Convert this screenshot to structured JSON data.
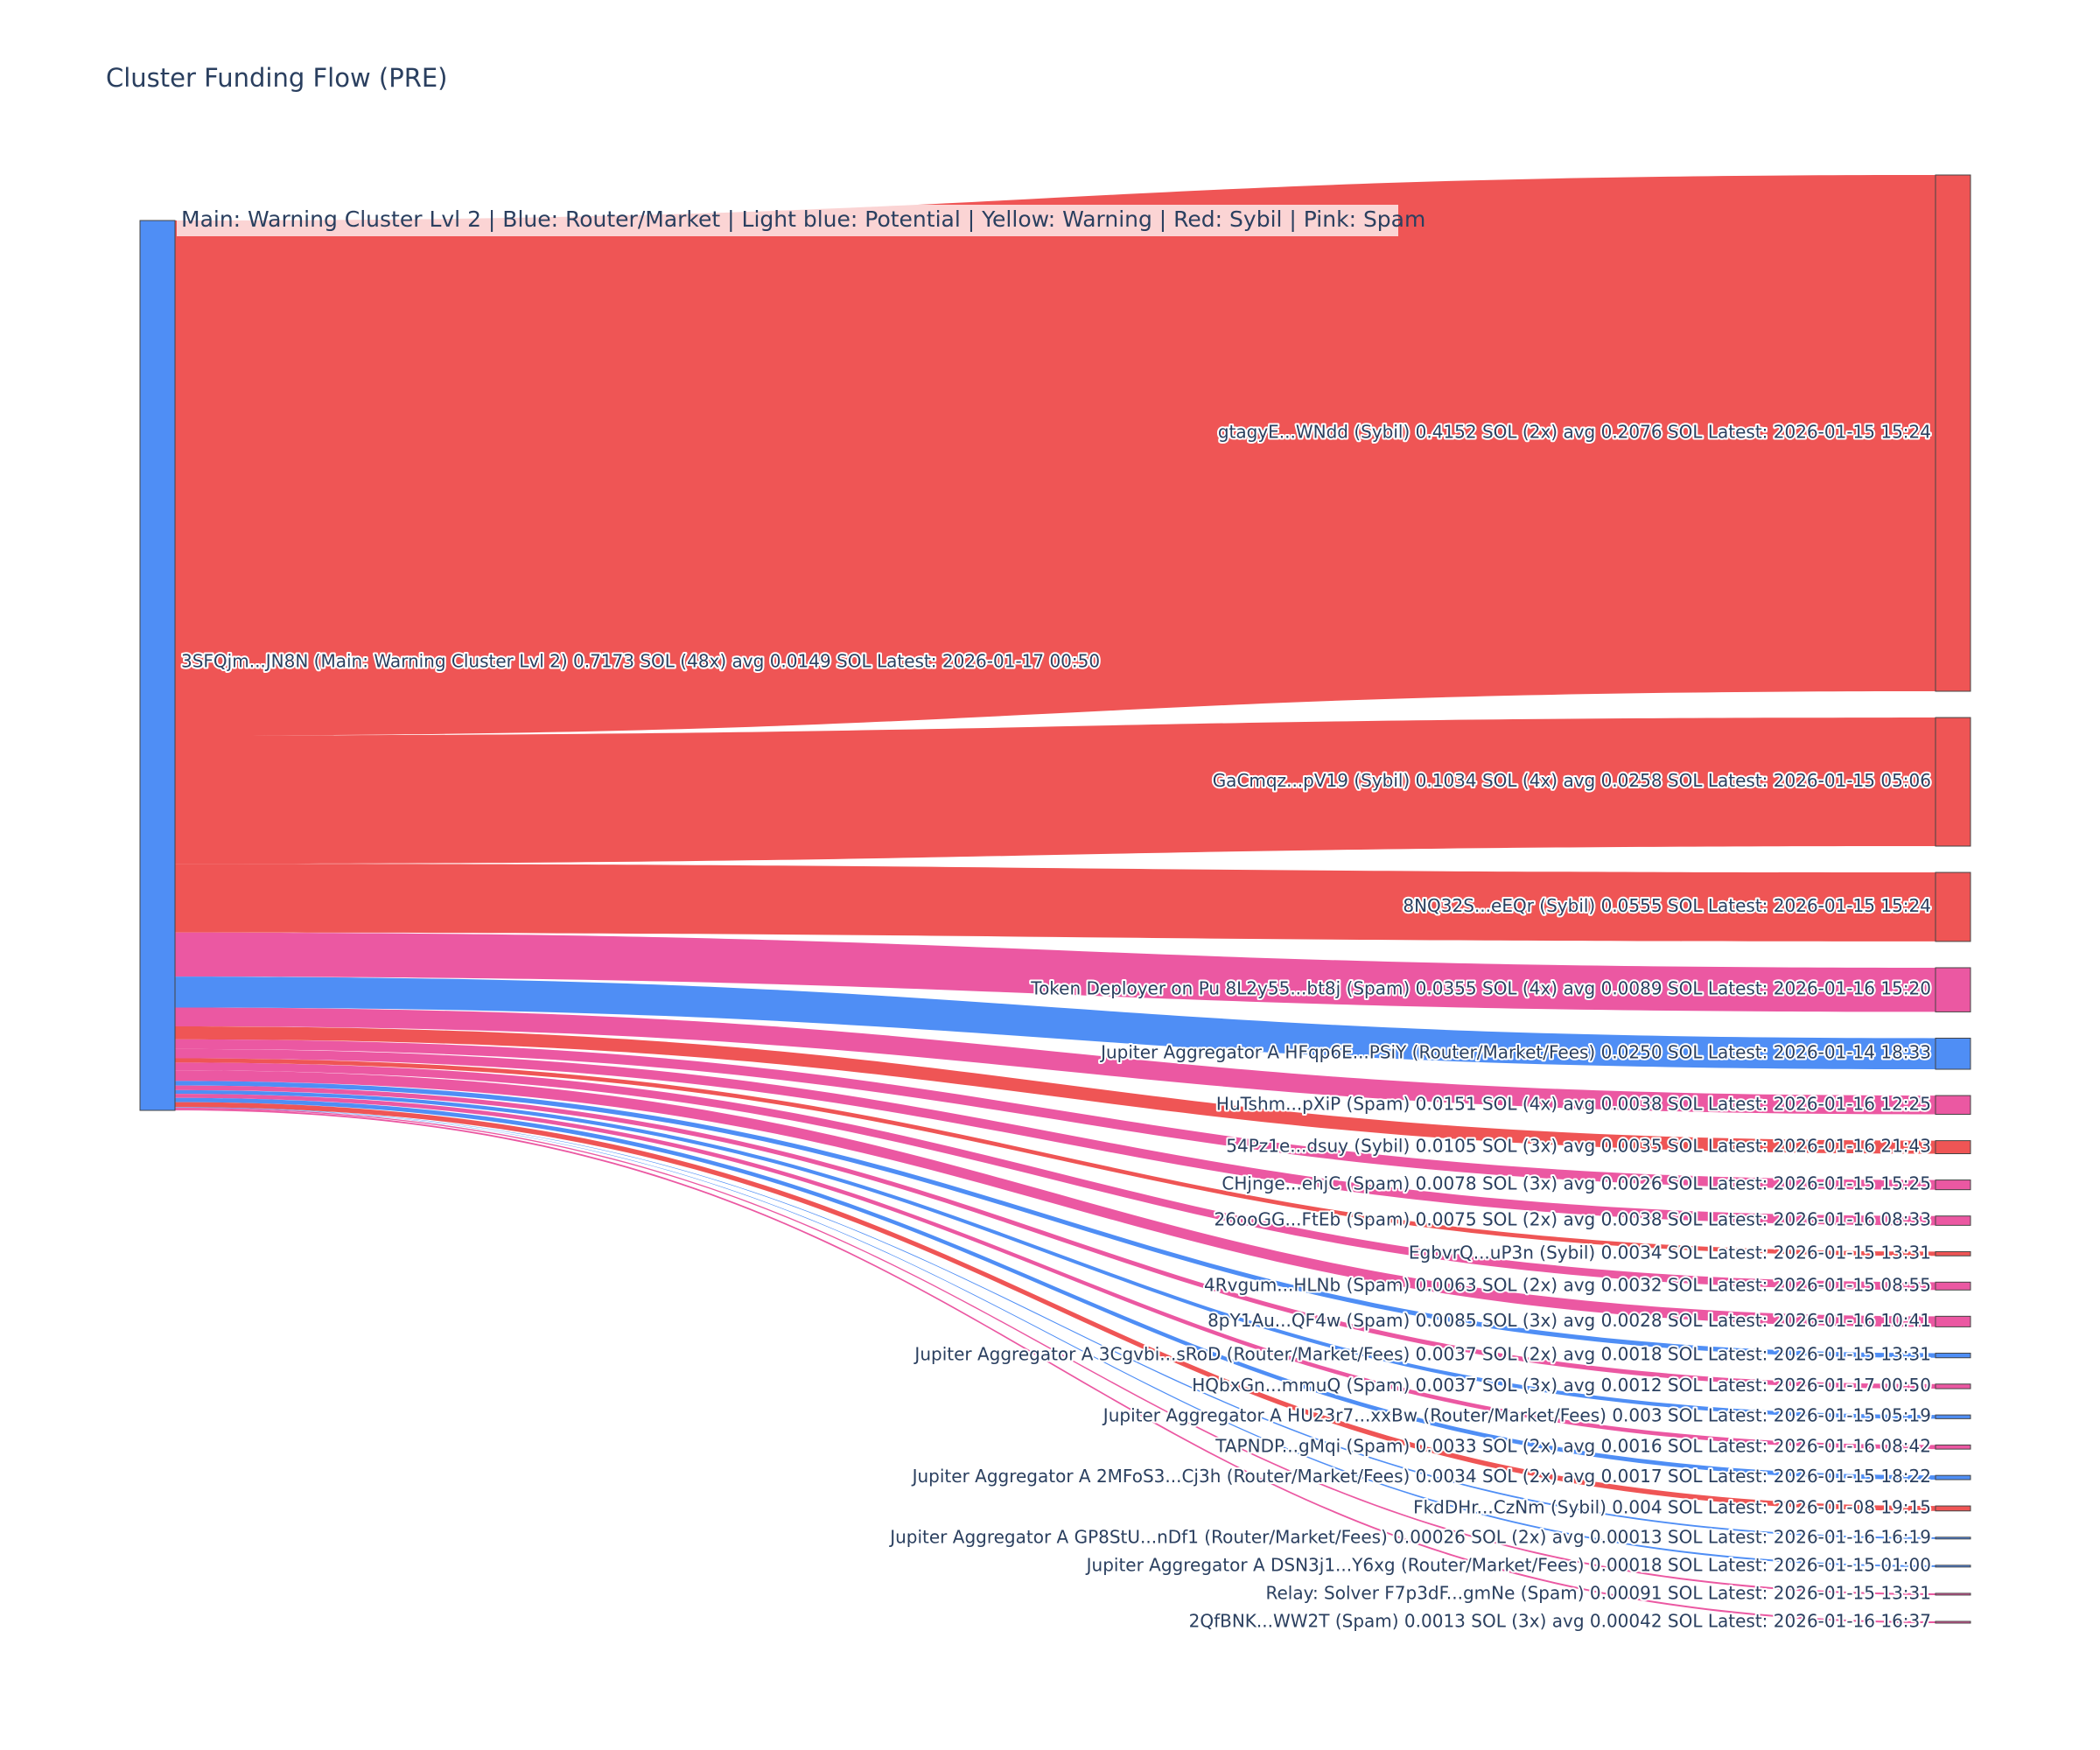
{
  "chart_data": {
    "type": "sankey",
    "title": "Cluster Funding Flow (PRE)",
    "legend_note": "Main: Warning Cluster Lvl 2  |  Blue: Router/Market | Light blue: Potential | Yellow: Warning | Red: Sybil | Pink: Spam",
    "colors": {
      "sybil": "#ef5555",
      "spam": "#eb58a2",
      "router": "#4f8ef5",
      "main": "#4f8ef5",
      "node_border": "#444444"
    },
    "source": {
      "label": "3SFQjm...JN8N (Main: Warning Cluster Lvl 2) 0.7173 SOL (48x) avg 0.0149 SOL Latest: 2026-01-17 00:50",
      "value_sol": 0.7173,
      "count": 48,
      "category": "main"
    },
    "targets": [
      {
        "label": "gtagyE...WNdd (Sybil) 0.4152 SOL (2x) avg 0.2076 SOL Latest: 2026-01-15 15:24",
        "value": 0.4152,
        "category": "sybil"
      },
      {
        "label": "GaCmqz...pV19 (Sybil) 0.1034 SOL (4x) avg 0.0258 SOL Latest: 2026-01-15 05:06",
        "value": 0.1034,
        "category": "sybil"
      },
      {
        "label": "8NQ32S...eEQr (Sybil) 0.0555 SOL Latest: 2026-01-15 15:24",
        "value": 0.0555,
        "category": "sybil"
      },
      {
        "label": "Token Deployer on Pu 8L2y55...bt8j (Spam) 0.0355 SOL (4x) avg 0.0089 SOL Latest: 2026-01-16 15:20",
        "value": 0.0355,
        "category": "spam"
      },
      {
        "label": "Jupiter Aggregator A HFqp6E...PSiY (Router/Market/Fees) 0.0250 SOL Latest: 2026-01-14 18:33",
        "value": 0.025,
        "category": "router"
      },
      {
        "label": "HuTshm...pXiP (Spam) 0.0151 SOL (4x) avg 0.0038 SOL Latest: 2026-01-16 12:25",
        "value": 0.0151,
        "category": "spam"
      },
      {
        "label": "54Pz1e...dsuy (Sybil) 0.0105 SOL (3x) avg 0.0035 SOL Latest: 2026-01-16 21:43",
        "value": 0.0105,
        "category": "sybil"
      },
      {
        "label": "CHjnge...ehjC (Spam) 0.0078 SOL (3x) avg 0.0026 SOL Latest: 2026-01-15 15:25",
        "value": 0.0078,
        "category": "spam"
      },
      {
        "label": "26ooGG...FtEb (Spam) 0.0075 SOL (2x) avg 0.0038 SOL Latest: 2026-01-16 08:33",
        "value": 0.0075,
        "category": "spam"
      },
      {
        "label": "EgbvrQ...uP3n (Sybil) 0.0034 SOL Latest: 2026-01-15 13:31",
        "value": 0.0034,
        "category": "sybil"
      },
      {
        "label": "4Rvgum...HLNb (Spam) 0.0063 SOL (2x) avg 0.0032 SOL Latest: 2026-01-15 08:55",
        "value": 0.0063,
        "category": "spam"
      },
      {
        "label": "8pY1Au...QF4w (Spam) 0.0085 SOL (3x) avg 0.0028 SOL Latest: 2026-01-16 10:41",
        "value": 0.0085,
        "category": "spam"
      },
      {
        "label": "Jupiter Aggregator A 3Cgvbi...sRoD (Router/Market/Fees) 0.0037 SOL (2x) avg 0.0018 SOL Latest: 2026-01-15 13:31",
        "value": 0.0037,
        "category": "router"
      },
      {
        "label": "HQbxGn...mmuQ (Spam) 0.0037 SOL (3x) avg 0.0012 SOL Latest: 2026-01-17 00:50",
        "value": 0.0037,
        "category": "spam"
      },
      {
        "label": "Jupiter Aggregator A HU23r7...xxBw (Router/Market/Fees) 0.003 SOL Latest: 2026-01-15 05:19",
        "value": 0.003,
        "category": "router"
      },
      {
        "label": "TAPNDP...gMqi (Spam) 0.0033 SOL (2x) avg 0.0016 SOL Latest: 2026-01-16 08:42",
        "value": 0.0033,
        "category": "spam"
      },
      {
        "label": "Jupiter Aggregator A 2MFoS3...Cj3h (Router/Market/Fees) 0.0034 SOL (2x) avg 0.0017 SOL Latest: 2026-01-15 18:22",
        "value": 0.0034,
        "category": "router"
      },
      {
        "label": "FkdDHr...CzNm (Sybil) 0.004 SOL Latest: 2026-01-08 19:15",
        "value": 0.004,
        "category": "sybil"
      },
      {
        "label": "Jupiter Aggregator A GP8StU...nDf1 (Router/Market/Fees) 0.00026 SOL (2x) avg 0.00013 SOL Latest: 2026-01-16 16:19",
        "value": 0.00026,
        "category": "router"
      },
      {
        "label": "Jupiter Aggregator A DSN3j1...Y6xg (Router/Market/Fees) 0.00018 SOL Latest: 2026-01-15 01:00",
        "value": 0.00018,
        "category": "router"
      },
      {
        "label": "Relay: Solver F7p3dF...gmNe (Spam) 0.00091 SOL Latest: 2026-01-15 13:31",
        "value": 0.00091,
        "category": "spam"
      },
      {
        "label": "2QfBNK...WW2T (Spam) 0.0013 SOL (3x) avg 0.00042 SOL Latest: 2026-01-16 16:37",
        "value": 0.0013,
        "category": "spam"
      }
    ]
  }
}
